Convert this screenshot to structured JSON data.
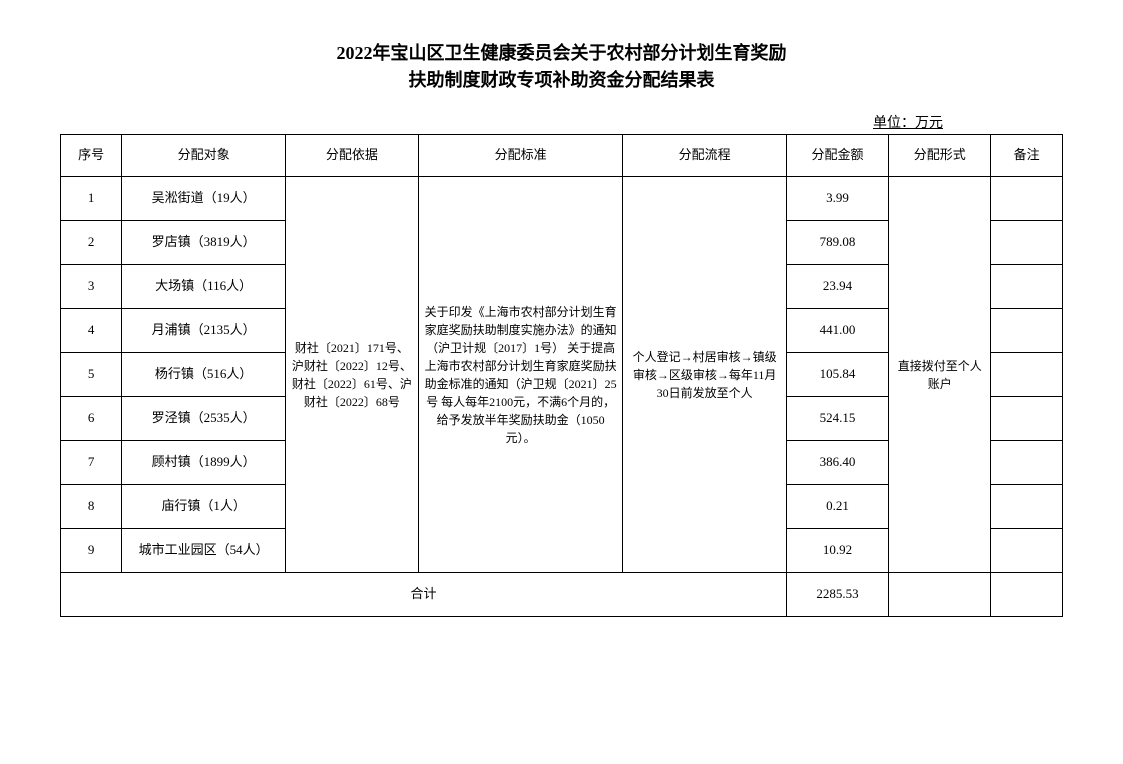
{
  "title": {
    "line1": "2022年宝山区卫生健康委员会关于农村部分计划生育奖励",
    "line2": "扶助制度财政专项补助资金分配结果表"
  },
  "unit_label": "单位：万元",
  "headers": {
    "seq": "序号",
    "target": "分配对象",
    "basis": "分配依据",
    "standard": "分配标准",
    "process": "分配流程",
    "amount": "分配金额",
    "form": "分配形式",
    "note": "备注"
  },
  "rows": [
    {
      "seq": "1",
      "target": "吴淞街道（19人）",
      "amount": "3.99"
    },
    {
      "seq": "2",
      "target": "罗店镇（3819人）",
      "amount": "789.08"
    },
    {
      "seq": "3",
      "target": "大场镇（116人）",
      "amount": "23.94"
    },
    {
      "seq": "4",
      "target": "月浦镇（2135人）",
      "amount": "441.00"
    },
    {
      "seq": "5",
      "target": "杨行镇（516人）",
      "amount": "105.84"
    },
    {
      "seq": "6",
      "target": "罗泾镇（2535人）",
      "amount": "524.15"
    },
    {
      "seq": "7",
      "target": "顾村镇（1899人）",
      "amount": "386.40"
    },
    {
      "seq": "8",
      "target": "庙行镇（1人）",
      "amount": "0.21"
    },
    {
      "seq": "9",
      "target": "城市工业园区（54人）",
      "amount": "10.92"
    }
  ],
  "merged": {
    "basis": "财社〔2021〕171号、沪财社〔2022〕12号、财社〔2022〕61号、沪财社〔2022〕68号",
    "standard": "关于印发《上海市农村部分计划生育家庭奖励扶助制度实施办法》的通知（沪卫计规〔2017〕1号）\n关于提高上海市农村部分计划生育家庭奖励扶助金标准的通知（沪卫规〔2021〕25号\n每人每年2100元，不满6个月的，给予发放半年奖励扶助金（1050元）。",
    "process": "个人登记→村居审核→镇级审核→区级审核→每年11月30日前发放至个人",
    "form": "直接拨付至个人账户"
  },
  "total": {
    "label": "合计",
    "amount": "2285.53"
  }
}
